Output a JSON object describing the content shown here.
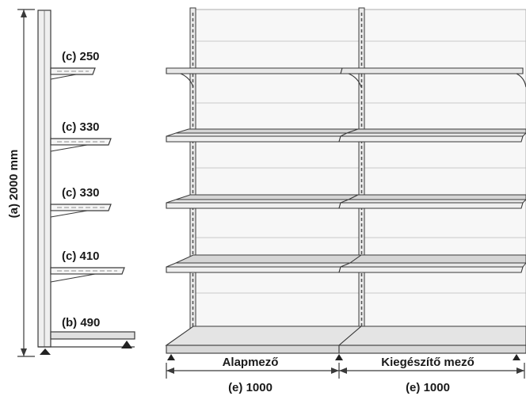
{
  "side_view": {
    "height_label": "(a) 2000 mm",
    "shelf_labels": [
      "(c) 250",
      "(c) 330",
      "(c) 330",
      "(c) 410",
      "(b) 490"
    ]
  },
  "front_view": {
    "bay_labels": [
      "Alapmező",
      "Kiegészítő mező"
    ],
    "width_labels": [
      "(e) 1000",
      "(e) 1000"
    ]
  },
  "colors": {
    "line": "#3a3a3a",
    "panel": "#f2f2f2",
    "shelf": "#e6e6e6",
    "shadow": "#c9c9c9"
  }
}
